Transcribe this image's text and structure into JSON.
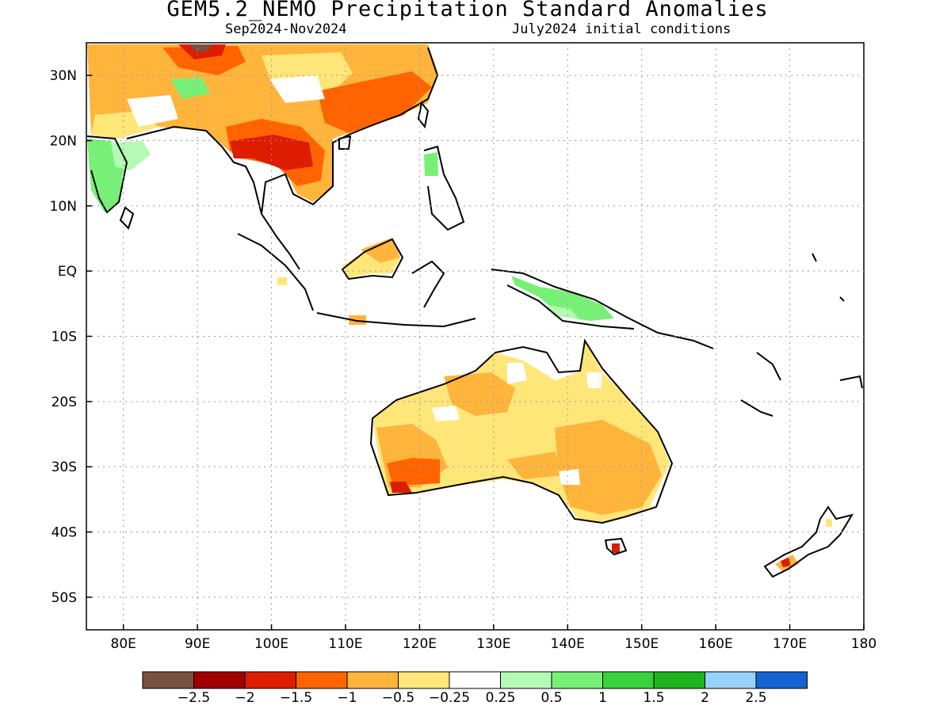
{
  "title": "GEM5.2_NEMO Precipitation Standard Anomalies",
  "period": "Sep2024-Nov2024",
  "initial_conditions": "July2024 initial conditions",
  "lon_labels": [
    "80E",
    "90E",
    "100E",
    "110E",
    "120E",
    "130E",
    "140E",
    "150E",
    "160E",
    "170E",
    "180"
  ],
  "lat_labels": [
    "30N",
    "20N",
    "10N",
    "EQ",
    "10S",
    "20S",
    "30S",
    "40S",
    "50S"
  ],
  "colorbar": {
    "labels": [
      "-2.5",
      "-2",
      "-1.5",
      "-1",
      "-0.5",
      "-0.25",
      "0.25",
      "0.5",
      "1",
      "1.5",
      "2",
      "2.5"
    ],
    "colors": [
      "#7a5040",
      "#a00000",
      "#dd1c00",
      "#ff6400",
      "#ffb43c",
      "#ffe678",
      "#ffffff",
      "#b4fab4",
      "#78f078",
      "#37d23c",
      "#1eb41e",
      "#96d2fa",
      "#1464d2"
    ]
  },
  "chart_data": {
    "type": "heatmap",
    "title": "GEM5.2_NEMO Precipitation Standard Anomalies",
    "xlim": [
      75,
      180
    ],
    "ylim": [
      -55,
      35
    ],
    "x_ticks": [
      80,
      90,
      100,
      110,
      120,
      130,
      140,
      150,
      160,
      170,
      180
    ],
    "y_ticks": [
      30,
      20,
      10,
      0,
      -10,
      -20,
      -30,
      -40,
      -50
    ],
    "grid": true
  }
}
